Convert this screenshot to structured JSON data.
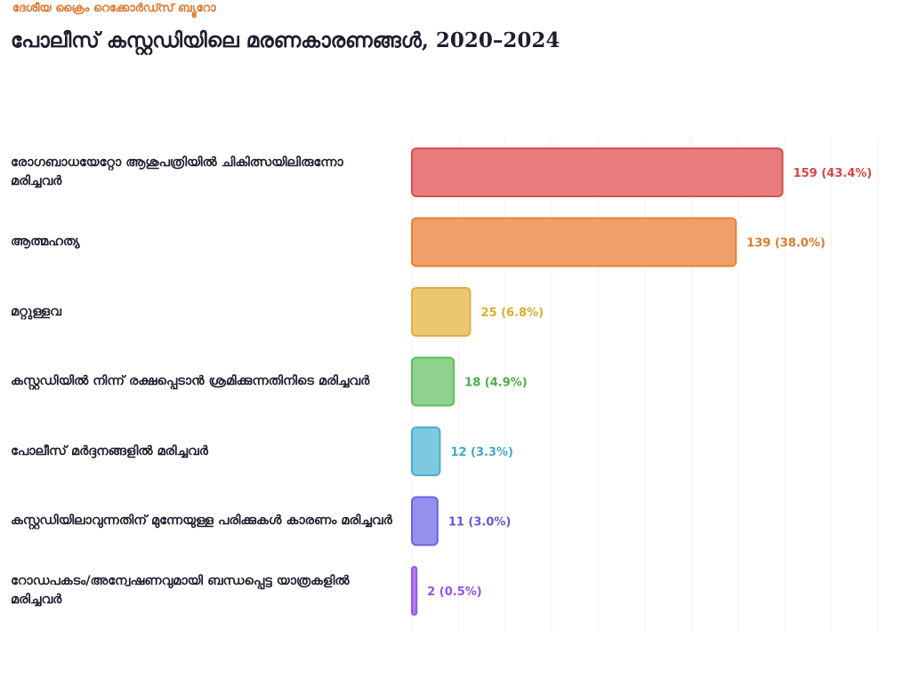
{
  "header": {
    "source": "ദേശീയ ക്രൈം റെക്കോർഡ്സ് ബ്യൂറോ",
    "title": "പോലീസ് കസ്റ്റഡിയിലെ മരണകാരണങ്ങൾ, 2020–2024"
  },
  "chart_data": {
    "type": "bar",
    "orientation": "horizontal",
    "title": "പോലീസ് കസ്റ്റഡിയിലെ മരണകാരണങ്ങൾ, 2020–2024",
    "xlabel": "",
    "ylabel": "",
    "xlim": [
      0,
      200
    ],
    "grid": true,
    "categories": [
      "രോഗബാധയേറ്റോ ആശുപത്രിയിൽ ചികിത്സയിലിരുന്നോ മരിച്ചവർ",
      "ആത്മഹത്യ",
      "മറ്റുള്ളവ",
      "കസ്റ്റഡിയിൽ നിന്ന് രക്ഷപ്പെടാൻ ശ്രമിക്കുന്നതിനിടെ മരിച്ചവർ",
      "പോലീസ് മർദ്ദനങ്ങളിൽ മരിച്ചവർ",
      "കസ്റ്റഡിയിലാവുന്നതിന് മുന്നേയുള്ള പരിക്കുകൾ കാരണം മരിച്ചവർ",
      "റോഡപകടം/അന്വേഷണവുമായി ബന്ധപ്പെട്ട യാത്രകളിൽ മരിച്ചവർ"
    ],
    "values": [
      159,
      139,
      25,
      18,
      12,
      11,
      2
    ],
    "percentages": [
      "43.4%",
      "38.0%",
      "6.8%",
      "4.9%",
      "3.3%",
      "3.0%",
      "0.5%"
    ],
    "colors": {
      "fill": [
        "#e87c7c",
        "#f0a06a",
        "#ebc870",
        "#8fd18f",
        "#7ec8e0",
        "#9490ec",
        "#b07cf0"
      ],
      "stroke": [
        "#d95050",
        "#e8822f",
        "#e0b040",
        "#5cbf5c",
        "#4aafcf",
        "#6a64e0",
        "#9a56ea"
      ],
      "label": [
        "#d64545",
        "#e07a2a",
        "#d9ac2e",
        "#4cae4c",
        "#3ea8c8",
        "#5f58d6",
        "#9a4fe6"
      ]
    }
  }
}
